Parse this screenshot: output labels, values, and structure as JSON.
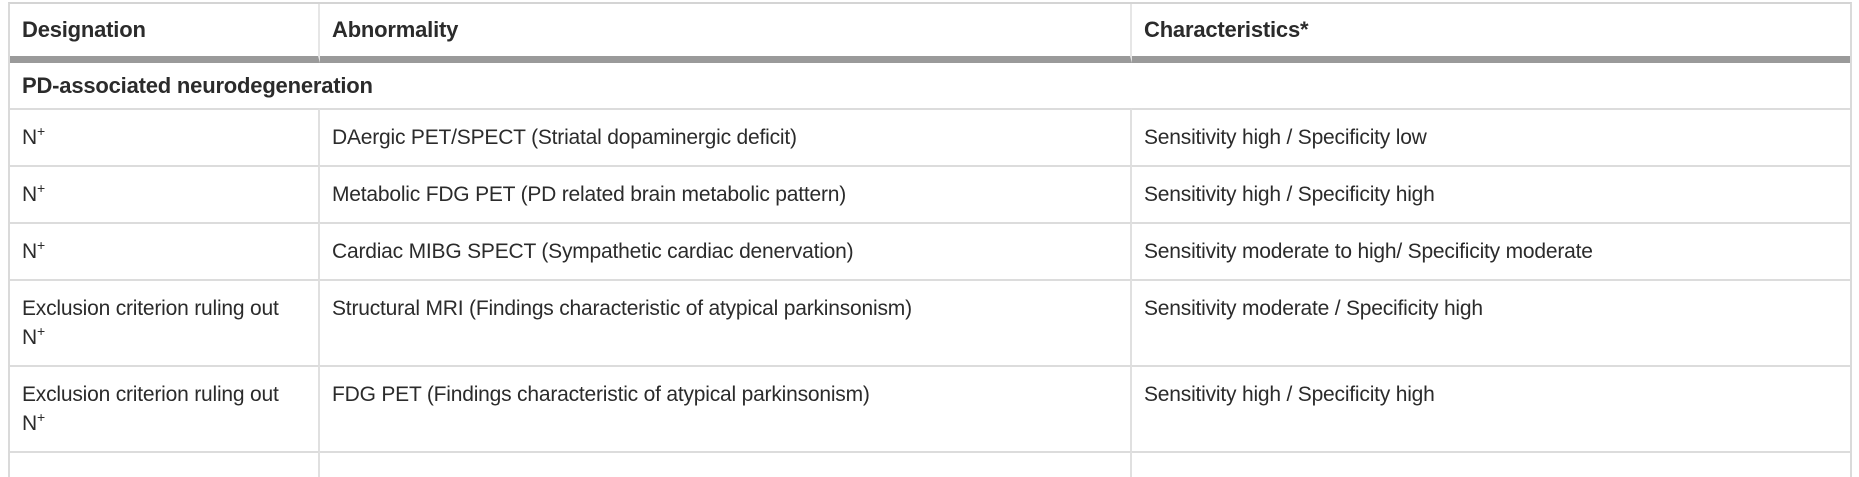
{
  "table": {
    "headers": [
      {
        "label": "Designation"
      },
      {
        "label": "Abnormality"
      },
      {
        "label": "Characteristics*"
      }
    ],
    "section_header": "PD-associated neurodegeneration",
    "rows": [
      {
        "designation_base": "N",
        "designation_sup": "+",
        "abnormality": "DAergic PET/SPECT (Striatal dopaminergic deficit)",
        "characteristics": "Sensitivity high / Specificity low"
      },
      {
        "designation_base": "N",
        "designation_sup": "+",
        "abnormality": "Metabolic FDG PET (PD related brain metabolic pattern)",
        "characteristics": "Sensitivity high / Specificity high"
      },
      {
        "designation_base": "N",
        "designation_sup": "+",
        "abnormality": "Cardiac MIBG SPECT (Sympathetic cardiac denervation)",
        "characteristics": "Sensitivity moderate to high/ Specificity moderate"
      },
      {
        "designation_base": "Exclusion criterion ruling out N",
        "designation_sup": "+",
        "abnormality": "Structural MRI (Findings characteristic of atypical parkinsonism)",
        "characteristics": "Sensitivity moderate / Specificity high"
      },
      {
        "designation_base": "Exclusion criterion ruling out N",
        "designation_sup": "+",
        "abnormality": "FDG PET (Findings characteristic of atypical parkinsonism)",
        "characteristics": "Sensitivity high / Specificity high"
      }
    ],
    "colors": {
      "header_bar": "#9a9a9a",
      "grid_line": "#dcdcdc",
      "outer_border": "#d4d4d4",
      "text": "#2b2b2b"
    }
  }
}
